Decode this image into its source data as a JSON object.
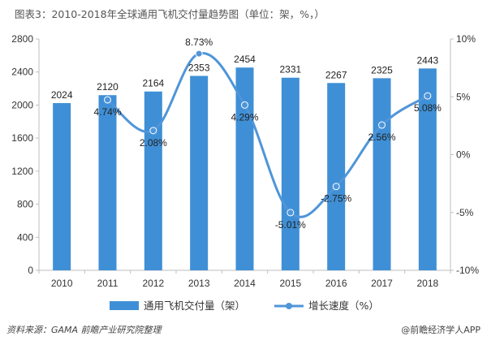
{
  "title": "图表3：2010-2018年全球通用飞机交付量趋势图（单位：架，%，）",
  "source": "资料来源：GAMA 前瞻产业研究院整理",
  "credit": "@前瞻经济学人APP",
  "colors": {
    "bar": "#3f8fd6",
    "line": "#4f95d9",
    "axis": "#bfbfbf"
  },
  "chart_data": {
    "type": "bar",
    "categories": [
      "2010",
      "2011",
      "2012",
      "2013",
      "2014",
      "2015",
      "2016",
      "2017",
      "2018"
    ],
    "series": [
      {
        "name": "通用飞机交付量（架）",
        "type": "bar",
        "axis": "left",
        "values": [
          2024,
          2120,
          2164,
          2353,
          2454,
          2331,
          2267,
          2325,
          2443
        ],
        "labels": [
          "2024",
          "2120",
          "2164",
          "2353",
          "2454",
          "2331",
          "2267",
          "2325",
          "2443"
        ]
      },
      {
        "name": "增长速度（%）",
        "type": "line",
        "axis": "right",
        "values": [
          null,
          4.74,
          2.08,
          8.73,
          4.29,
          -5.01,
          -2.75,
          2.56,
          5.08
        ],
        "labels": [
          "",
          "4.74%",
          "2.08%",
          "8.73%",
          "4.29%",
          "-5.01%",
          "-2.75%",
          "2.56%",
          "5.08%"
        ]
      }
    ],
    "ylim_left": [
      0,
      2800
    ],
    "yticks_left": [
      "0",
      "400",
      "800",
      "1200",
      "1600",
      "2000",
      "2400",
      "2800"
    ],
    "ylim_right": [
      -10,
      10
    ],
    "yticks_right": [
      "-10%",
      "-5%",
      "0%",
      "5%",
      "10%"
    ],
    "legend_position": "bottom",
    "grid": false
  }
}
